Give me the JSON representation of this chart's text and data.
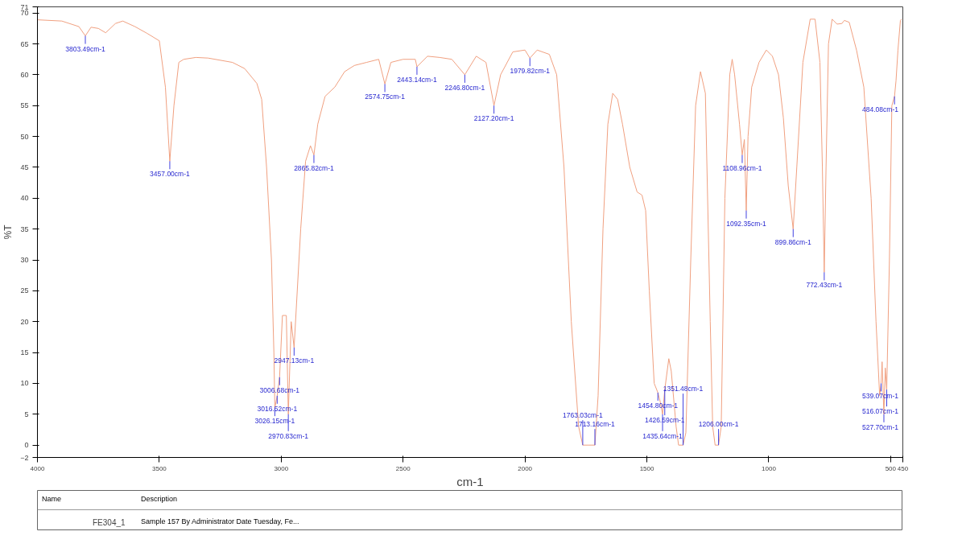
{
  "chart_data": {
    "type": "line",
    "xlabel": "cm-1",
    "ylabel": "%T",
    "xlim": [
      4000,
      450
    ],
    "xticks": [
      4000,
      3500,
      3000,
      2500,
      2000,
      1500,
      1000,
      500,
      450
    ],
    "ylim": [
      -2,
      71
    ],
    "yticks": [
      -2,
      0,
      5,
      10,
      15,
      20,
      25,
      30,
      35,
      40,
      45,
      50,
      55,
      60,
      65,
      70,
      71
    ],
    "grid": false,
    "legend": "bottom",
    "marker": "none",
    "line_style": "solid",
    "series": [
      {
        "name": "FE304_1",
        "color": "#f0a080",
        "x": [
          4000,
          3900,
          3830,
          3803.49,
          3780,
          3750,
          3720,
          3680,
          3650,
          3600,
          3550,
          3500,
          3475,
          3457,
          3440,
          3420,
          3400,
          3350,
          3300,
          3200,
          3150,
          3100,
          3080,
          3060,
          3040,
          3030,
          3026.15,
          3016.52,
          3006.68,
          2995,
          2979,
          2970.83,
          2959,
          2947.13,
          2920,
          2900,
          2880,
          2865.82,
          2850,
          2820,
          2780,
          2740,
          2700,
          2650,
          2600,
          2574.75,
          2550,
          2500,
          2450,
          2443.14,
          2400,
          2350,
          2300,
          2246.8,
          2200,
          2160,
          2127.2,
          2100,
          2050,
          2000,
          1979.82,
          1950,
          1900,
          1870,
          1840,
          1810,
          1780,
          1763.03,
          1740,
          1713.16,
          1700,
          1680,
          1660,
          1640,
          1620,
          1600,
          1570,
          1540,
          1520,
          1505,
          1490,
          1470,
          1454.8,
          1445,
          1435.64,
          1426.59,
          1410,
          1400,
          1380,
          1370,
          1351.48,
          1340,
          1320,
          1300,
          1280,
          1260,
          1240,
          1230,
          1220,
          1206,
          1195,
          1180,
          1160,
          1150,
          1140,
          1120,
          1108.96,
          1100,
          1092.35,
          1085,
          1070,
          1040,
          1010,
          985,
          960,
          940,
          920,
          899.86,
          885,
          860,
          830,
          810,
          790,
          780,
          772.43,
          765,
          755,
          740,
          720,
          700,
          690,
          670,
          640,
          610,
          580,
          560,
          545,
          539.07,
          535,
          527.7,
          522,
          516.07,
          505,
          495,
          484.08,
          478,
          470,
          460,
          455
        ],
        "values": [
          68.9,
          68.7,
          67.8,
          66.3,
          67.7,
          67.5,
          66.8,
          68.3,
          68.7,
          67.8,
          66.7,
          65.5,
          58,
          46,
          55,
          62,
          62.5,
          62.8,
          62.7,
          62,
          61,
          58.6,
          56,
          45,
          30,
          15,
          6,
          8,
          11,
          21,
          21,
          5,
          20,
          15.8,
          35,
          46,
          48.5,
          47,
          52,
          56.5,
          58,
          60.5,
          61.5,
          62,
          62.5,
          58.5,
          62,
          62.5,
          62.5,
          61.3,
          63,
          62.8,
          62.5,
          60,
          63,
          62,
          55,
          60,
          63.7,
          64,
          62.7,
          64,
          63.3,
          60,
          45,
          20,
          3,
          0,
          0,
          0,
          8,
          35,
          52,
          57,
          56,
          52,
          45,
          41,
          40.5,
          38,
          25,
          10,
          8.5,
          7,
          5,
          9,
          14,
          12,
          3,
          0,
          0,
          2,
          30,
          55,
          60.5,
          57,
          20,
          3,
          0,
          0,
          3,
          40,
          60,
          62.5,
          60,
          52,
          47,
          49.5,
          38,
          50,
          58,
          62,
          64,
          63,
          60,
          53,
          42,
          35,
          45,
          62,
          69,
          69,
          62,
          45,
          28,
          45,
          65,
          69,
          68.2,
          68.3,
          68.8,
          68.5,
          64,
          58,
          40,
          20,
          8,
          10,
          13.5,
          5,
          12.5,
          9,
          30,
          55,
          56.5,
          59,
          64,
          68.8,
          69
        ]
      }
    ],
    "annotations": [
      {
        "text": "3803.49cm-1",
        "x": 3803.49,
        "y": 66.3
      },
      {
        "text": "3457.00cm-1",
        "x": 3457,
        "y": 46
      },
      {
        "text": "2865.82cm-1",
        "x": 2865.82,
        "y": 47
      },
      {
        "text": "2574.75cm-1",
        "x": 2574.75,
        "y": 58.5
      },
      {
        "text": "2443.14cm-1",
        "x": 2443.14,
        "y": 61.3
      },
      {
        "text": "2246.80cm-1",
        "x": 2246.8,
        "y": 60
      },
      {
        "text": "2127.20cm-1",
        "x": 2127.2,
        "y": 55
      },
      {
        "text": "1979.82cm-1",
        "x": 1979.82,
        "y": 62.7
      },
      {
        "text": "2947.13cm-1",
        "x": 2947.13,
        "y": 15.8
      },
      {
        "text": "3006.68cm-1",
        "x": 3006.68,
        "y": 11
      },
      {
        "text": "3016.52cm-1",
        "x": 3016.52,
        "y": 8
      },
      {
        "text": "3026.15cm-1",
        "x": 3026.15,
        "y": 6
      },
      {
        "text": "2970.83cm-1",
        "x": 2970.83,
        "y": 5
      },
      {
        "text": "1713.16cm-1",
        "x": 1713.16,
        "y": 0
      },
      {
        "text": "1763.03cm-1",
        "x": 1763.03,
        "y": 0
      },
      {
        "text": "1454.80cm-1",
        "x": 1454.8,
        "y": 8.5
      },
      {
        "text": "1426.59cm-1",
        "x": 1426.59,
        "y": 9
      },
      {
        "text": "1435.64cm-1",
        "x": 1435.64,
        "y": 5
      },
      {
        "text": "1351.48cm-1",
        "x": 1351.48,
        "y": 0
      },
      {
        "text": "1206.00cm-1",
        "x": 1206,
        "y": 0
      },
      {
        "text": "1108.96cm-1",
        "x": 1108.96,
        "y": 47
      },
      {
        "text": "1092.35cm-1",
        "x": 1092.35,
        "y": 38
      },
      {
        "text": "899.86cm-1",
        "x": 899.86,
        "y": 35
      },
      {
        "text": "772.43cm-1",
        "x": 772.43,
        "y": 28
      },
      {
        "text": "484.08cm-1",
        "x": 484.08,
        "y": 56.5
      },
      {
        "text": "539.07cm-1",
        "x": 539.07,
        "y": 10
      },
      {
        "text": "516.07cm-1",
        "x": 516.07,
        "y": 9
      },
      {
        "text": "527.70cm-1",
        "x": 527.7,
        "y": 5
      },
      "Name",
      "Description",
      "Sample 157 By Administrator Date Tuesday, Fe..."
    ]
  }
}
